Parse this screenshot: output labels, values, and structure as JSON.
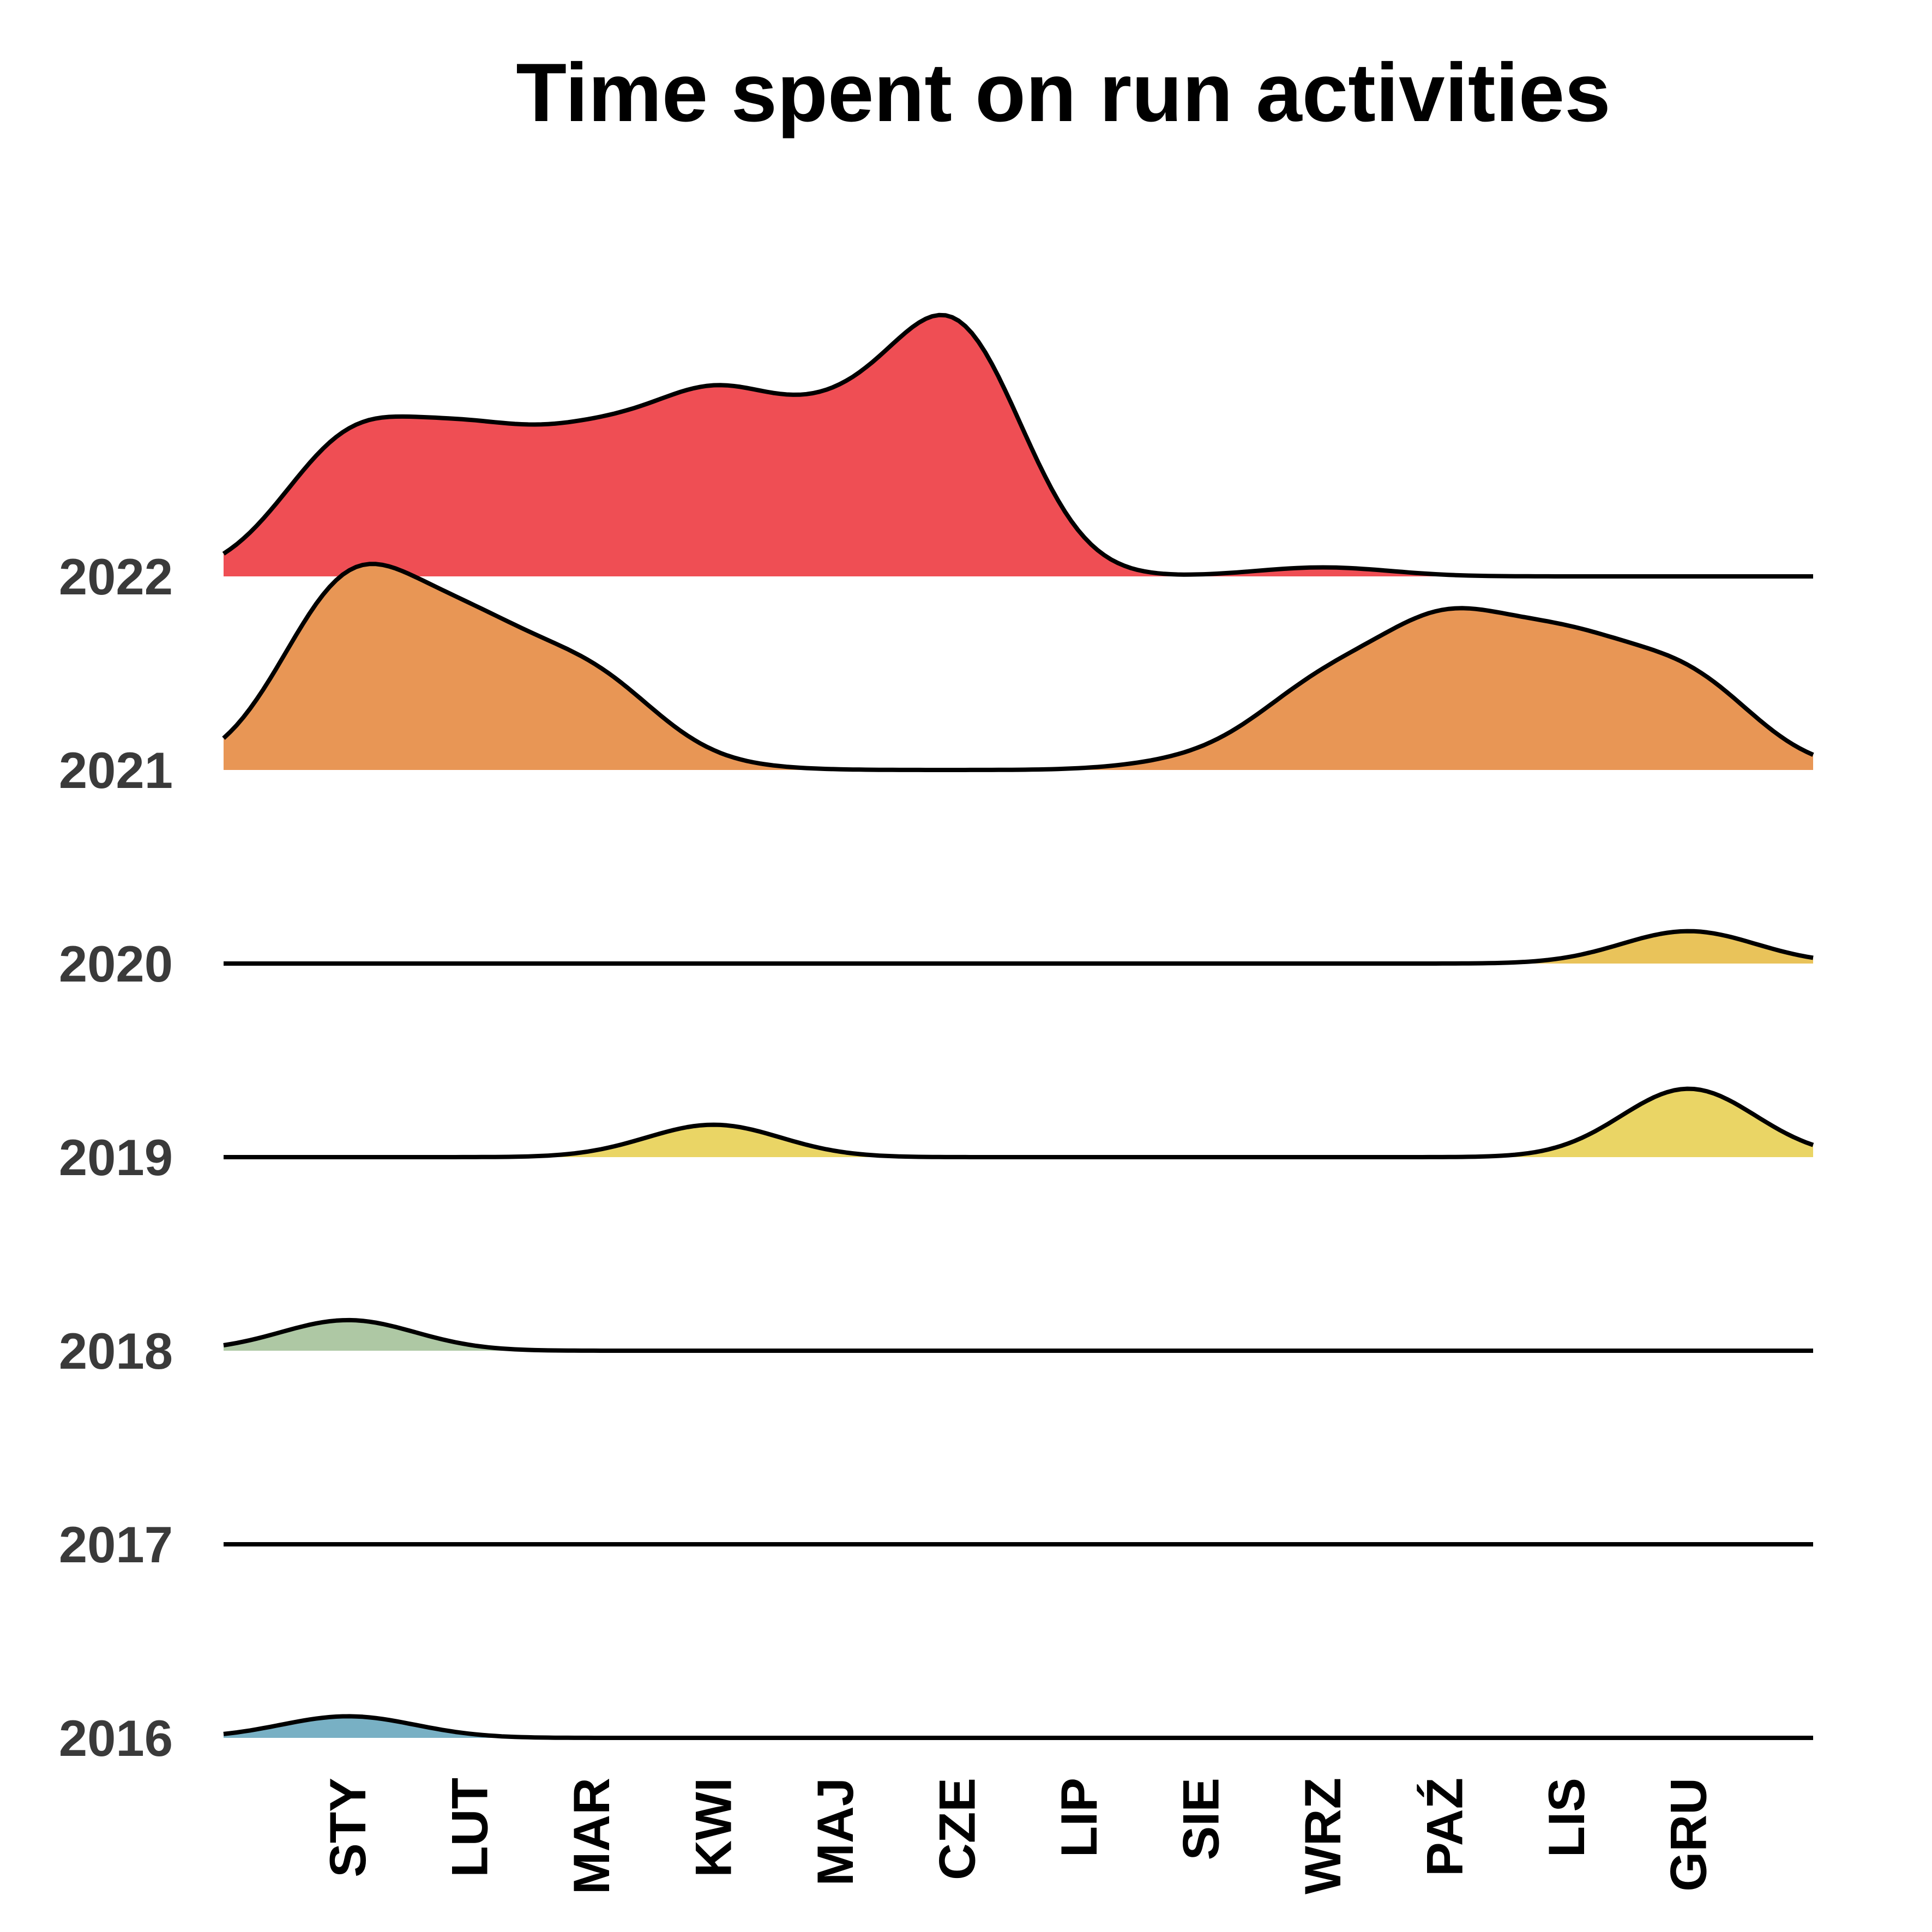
{
  "chart_data": {
    "type": "area",
    "subtype": "ridgeline",
    "title": "Time spent on run activities",
    "xlabel": "",
    "ylabel": "",
    "grid": false,
    "legend": "none",
    "categories": [
      "STY",
      "LUT",
      "MAR",
      "KWI",
      "MAJ",
      "CZE",
      "LIP",
      "SIE",
      "WRZ",
      "PAŹ",
      "LIS",
      "GRU"
    ],
    "series": [
      {
        "name": "2016",
        "color": "#78b0c4",
        "values": [
          0.12,
          0.0,
          0.0,
          0.0,
          0.0,
          0.0,
          0.0,
          0.0,
          0.0,
          0.0,
          0.0,
          0.0
        ]
      },
      {
        "name": "2017",
        "color": "#ffffff",
        "values": [
          0.0,
          0.0,
          0.0,
          0.0,
          0.0,
          0.0,
          0.0,
          0.0,
          0.0,
          0.0,
          0.0,
          0.0
        ]
      },
      {
        "name": "2018",
        "color": "#aec8a4",
        "values": [
          0.17,
          0.0,
          0.0,
          0.0,
          0.0,
          0.0,
          0.0,
          0.0,
          0.0,
          0.0,
          0.0,
          0.0
        ]
      },
      {
        "name": "2019",
        "color": "#ead565",
        "values": [
          0.0,
          0.0,
          0.0,
          0.18,
          0.0,
          0.0,
          0.0,
          0.0,
          0.0,
          0.0,
          0.0,
          0.38
        ]
      },
      {
        "name": "2020",
        "color": "#e9c35a",
        "values": [
          0.0,
          0.0,
          0.0,
          0.0,
          0.0,
          0.0,
          0.0,
          0.0,
          0.0,
          0.0,
          0.0,
          0.18
        ]
      },
      {
        "name": "2021",
        "color": "#e89655",
        "values": [
          0.98,
          0.65,
          0.47,
          0.02,
          0.0,
          0.0,
          0.0,
          0.05,
          0.42,
          0.7,
          0.58,
          0.47
        ]
      },
      {
        "name": "2022",
        "color": "#ef4e54",
        "values": [
          0.7,
          0.62,
          0.6,
          0.82,
          0.65,
          1.3,
          0.0,
          0.0,
          0.05,
          0.0,
          0.0,
          0.0
        ]
      }
    ]
  }
}
